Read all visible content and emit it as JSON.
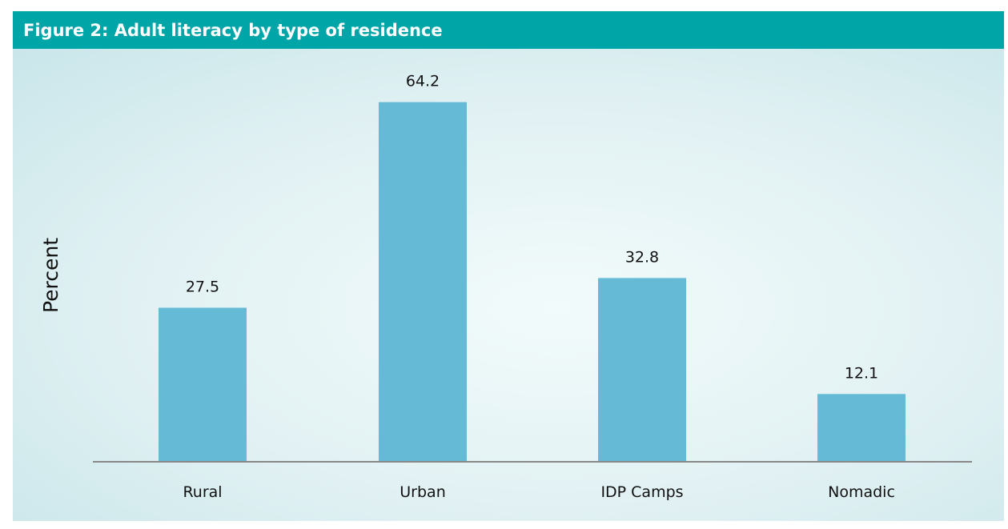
{
  "chart_data": {
    "type": "bar",
    "title": "Figure 2: Adult literacy by type of residence",
    "xlabel": "",
    "ylabel": "Percent",
    "categories": [
      "Rural",
      "Urban",
      "IDP Camps",
      "Nomadic"
    ],
    "values": [
      27.5,
      64.2,
      32.8,
      12.1
    ],
    "value_labels": [
      "27.5",
      "64.2",
      "32.8",
      "12.1"
    ],
    "ylim": [
      0,
      70
    ],
    "grid": false,
    "legend": "none",
    "bar_color": "#65bbd6",
    "header_color": "#00a5a8"
  }
}
